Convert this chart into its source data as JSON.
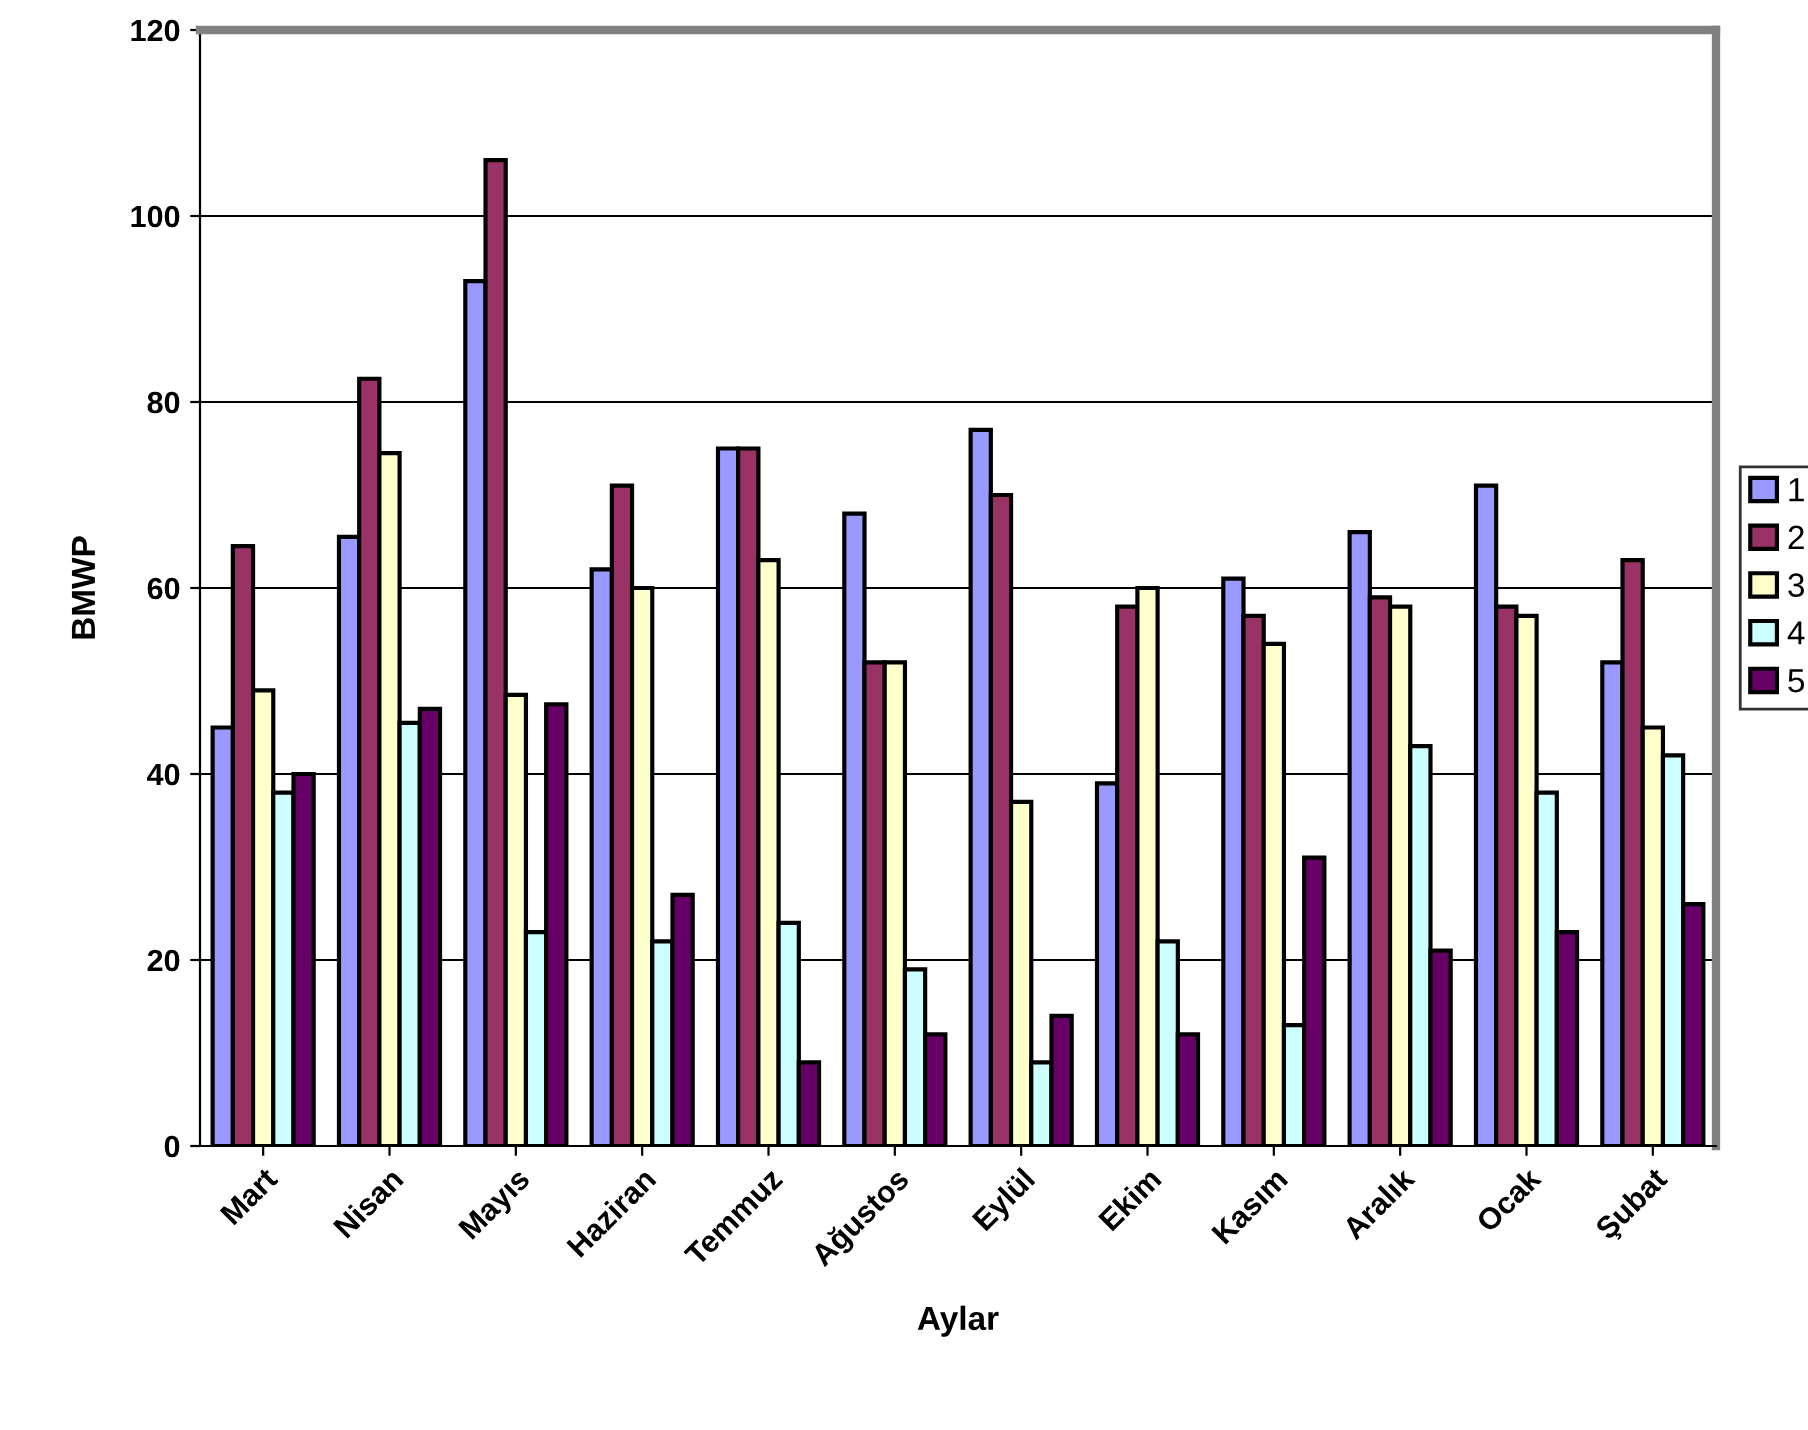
{
  "chart_data": {
    "type": "bar",
    "xlabel": "Aylar",
    "ylabel": "BMWP",
    "categories": [
      "Mart",
      "Nisan",
      "Mayıs",
      "Haziran",
      "Temmuz",
      "Ağustos",
      "Eylül",
      "Ekim",
      "Kasım",
      "Aralık",
      "Ocak",
      "Şubat"
    ],
    "series": [
      {
        "name": "1",
        "color": "#9999ff",
        "values": [
          45,
          65.5,
          93,
          62,
          75,
          68,
          77,
          39,
          61,
          66,
          71,
          52
        ]
      },
      {
        "name": "2",
        "color": "#993366",
        "values": [
          64.5,
          82.5,
          106,
          71,
          75,
          52,
          70,
          58,
          57,
          59,
          58,
          63
        ]
      },
      {
        "name": "3",
        "color": "#ffffcc",
        "values": [
          49,
          74.5,
          48.5,
          60,
          63,
          52,
          37,
          60,
          54,
          58,
          57,
          45
        ]
      },
      {
        "name": "4",
        "color": "#ccffff",
        "values": [
          38,
          45.5,
          23,
          22,
          24,
          19,
          9,
          22,
          13,
          43,
          38,
          42
        ]
      },
      {
        "name": "5",
        "color": "#660066",
        "values": [
          40,
          47,
          47.5,
          27,
          9,
          12,
          14,
          12,
          31,
          21,
          23,
          26
        ]
      }
    ],
    "ylim": [
      0,
      120
    ],
    "yticks": [
      0,
      20,
      40,
      60,
      80,
      100,
      120
    ],
    "grid": "y",
    "legend": "right"
  }
}
